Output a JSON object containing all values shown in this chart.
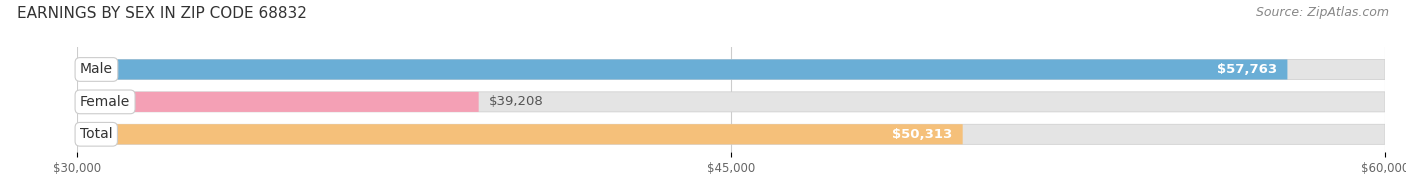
{
  "title": "EARNINGS BY SEX IN ZIP CODE 68832",
  "source": "Source: ZipAtlas.com",
  "categories": [
    "Male",
    "Female",
    "Total"
  ],
  "values": [
    57763,
    39208,
    50313
  ],
  "bar_colors": [
    "#6aaed6",
    "#f4a0b5",
    "#f5c07a"
  ],
  "bar_bg_color": "#e4e4e4",
  "value_labels": [
    "$57,763",
    "$39,208",
    "$50,313"
  ],
  "xmin": 30000,
  "xmax": 60000,
  "xticks": [
    30000,
    45000,
    60000
  ],
  "xticklabels": [
    "$30,000",
    "$45,000",
    "$60,000"
  ],
  "fig_width": 14.06,
  "fig_height": 1.95,
  "background_color": "#ffffff",
  "title_fontsize": 11,
  "source_fontsize": 9,
  "bar_label_fontsize": 9.5,
  "cat_label_fontsize": 10
}
